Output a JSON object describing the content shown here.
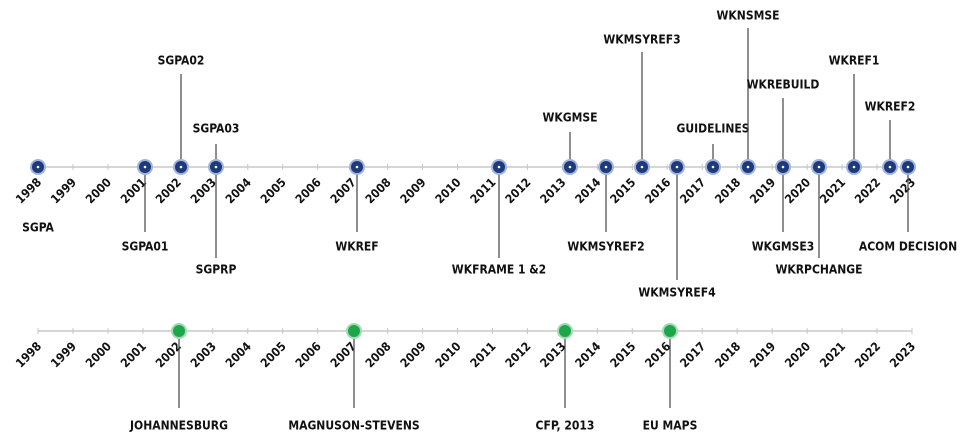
{
  "timelines": [
    {
      "years": [
        "1998",
        "1999",
        "2000",
        "2001",
        "2002",
        "2003",
        "2004",
        "2005",
        "2006",
        "2007",
        "2008",
        "2009",
        "2010",
        "2011",
        "2012",
        "2013",
        "2014",
        "2015",
        "2016",
        "2017",
        "2018",
        "2019",
        "2020",
        "2021",
        "2022",
        "2023"
      ],
      "events": [
        {
          "label": "SGPA"
        },
        {
          "label": "SGPA01"
        },
        {
          "label": "SGPA02"
        },
        {
          "label": "SGPA03"
        },
        {
          "label": "SGPRP"
        },
        {
          "label": "WKREF"
        },
        {
          "label": "WKFRAME 1 &2"
        },
        {
          "label": "WKGMSE"
        },
        {
          "label": "WKMSYREF2"
        },
        {
          "label": "WKMSYREF3"
        },
        {
          "label": "WKMSYREF4"
        },
        {
          "label": "GUIDELINES"
        },
        {
          "label": "WKNSMSE"
        },
        {
          "label": "WKREBUILD"
        },
        {
          "label": "WKGMSE3"
        },
        {
          "label": "WKRPCHANGE"
        },
        {
          "label": "WKREF1"
        },
        {
          "label": "WKREF2"
        },
        {
          "label": "ACOM DECISION"
        }
      ]
    },
    {
      "years": [
        "1998",
        "1999",
        "2000",
        "2001",
        "2002",
        "2003",
        "2004",
        "2005",
        "2006",
        "2007",
        "2008",
        "2009",
        "2010",
        "2011",
        "2012",
        "2013",
        "2014",
        "2015",
        "2016",
        "2017",
        "2018",
        "2019",
        "2020",
        "2021",
        "2022",
        "2023"
      ],
      "events": [
        {
          "label": "JOHANNESBURG"
        },
        {
          "label": "MAGNUSON-STEVENS"
        },
        {
          "label": "CFP, 2013"
        },
        {
          "label": "EU MAPS"
        }
      ]
    }
  ]
}
